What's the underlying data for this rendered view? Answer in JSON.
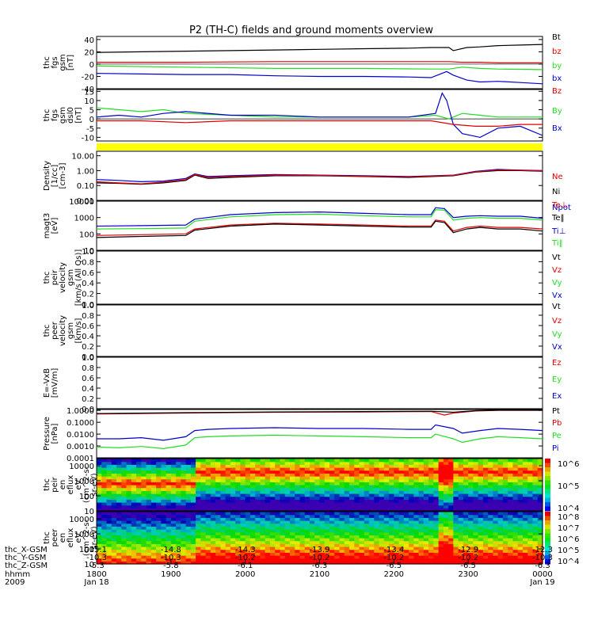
{
  "title": "P2 (TH-C) fields and ground moments overview",
  "colors": {
    "black": "#000000",
    "red": "#e00000",
    "green": "#22dd22",
    "blue": "#0000cc",
    "yellow": "#ffff00"
  },
  "chart_data": [
    {
      "type": "line",
      "panel": "fgs_gsm",
      "ylabel_lines": [
        "thc",
        "fgs",
        "gsm",
        "[nT]"
      ],
      "ylim": [
        -40,
        45
      ],
      "yticks": [
        40,
        20,
        0,
        -20,
        -40
      ],
      "log": false,
      "legend": [
        {
          "name": "Bt",
          "color": "#000000"
        },
        {
          "name": "bz",
          "color": "#e00000"
        },
        {
          "name": "by",
          "color": "#22dd22"
        },
        {
          "name": "bx",
          "color": "#0000cc"
        }
      ],
      "series": [
        {
          "name": "Bt",
          "color": "#000000",
          "x": [
            0,
            0.1,
            0.2,
            0.3,
            0.4,
            0.5,
            0.6,
            0.7,
            0.75,
            0.79,
            0.8,
            0.83,
            0.86,
            0.9,
            0.95,
            1.0
          ],
          "y": [
            19,
            20,
            21,
            22,
            23,
            24,
            25,
            26,
            27,
            27,
            22,
            27,
            28,
            30,
            31,
            32
          ]
        },
        {
          "name": "bz",
          "color": "#e00000",
          "x": [
            0,
            0.2,
            0.4,
            0.6,
            0.75,
            0.79,
            0.82,
            0.86,
            0.9,
            1.0
          ],
          "y": [
            3,
            3,
            4,
            4,
            4,
            4,
            3,
            3,
            2,
            2
          ]
        },
        {
          "name": "by",
          "color": "#22dd22",
          "x": [
            0,
            0.2,
            0.4,
            0.6,
            0.75,
            0.79,
            0.82,
            0.86,
            0.9,
            1.0
          ],
          "y": [
            -3,
            -5,
            -7,
            -7,
            -8,
            -8,
            -5,
            -7,
            -8,
            -9
          ]
        },
        {
          "name": "bx",
          "color": "#0000cc",
          "x": [
            0,
            0.1,
            0.2,
            0.3,
            0.4,
            0.5,
            0.6,
            0.7,
            0.75,
            0.785,
            0.8,
            0.83,
            0.86,
            0.9,
            0.95,
            1.0
          ],
          "y": [
            -15,
            -16,
            -17,
            -17,
            -19,
            -20,
            -20,
            -21,
            -22,
            -12,
            -18,
            -26,
            -29,
            -28,
            -30,
            -32
          ]
        }
      ]
    },
    {
      "type": "line",
      "panel": "fgs_gsm_dsl",
      "ylabel_lines": [
        "thc",
        "fgs",
        "gsm",
        "dsl0",
        "[nT]"
      ],
      "ylim": [
        -12,
        16
      ],
      "yticks": [
        15,
        10,
        5,
        0,
        -5,
        -10
      ],
      "log": false,
      "legend": [
        {
          "name": "Bz",
          "color": "#e00000"
        },
        {
          "name": "By",
          "color": "#22dd22"
        },
        {
          "name": "Bx",
          "color": "#0000cc"
        }
      ],
      "series": [
        {
          "name": "By",
          "color": "#22dd22",
          "x": [
            0,
            0.05,
            0.1,
            0.15,
            0.2,
            0.3,
            0.4,
            0.5,
            0.6,
            0.7,
            0.76,
            0.79,
            0.82,
            0.86,
            0.9,
            1.0
          ],
          "y": [
            6,
            5,
            4,
            5,
            3,
            2,
            1,
            1,
            1,
            1,
            2,
            0,
            3,
            2,
            1,
            1
          ]
        },
        {
          "name": "Bx",
          "color": "#0000cc",
          "x": [
            0,
            0.05,
            0.1,
            0.15,
            0.2,
            0.3,
            0.4,
            0.5,
            0.6,
            0.7,
            0.76,
            0.775,
            0.785,
            0.8,
            0.82,
            0.86,
            0.9,
            0.95,
            1.0
          ],
          "y": [
            1,
            2,
            1,
            3,
            4,
            2,
            2,
            1,
            1,
            1,
            3,
            14,
            10,
            -3,
            -8,
            -10,
            -5,
            -4,
            -9
          ]
        },
        {
          "name": "Bz",
          "color": "#e00000",
          "x": [
            0,
            0.1,
            0.2,
            0.3,
            0.4,
            0.5,
            0.6,
            0.7,
            0.75,
            0.8,
            0.85,
            0.9,
            0.95,
            1.0
          ],
          "y": [
            -1,
            -1,
            -2,
            -1,
            -1,
            -1,
            -1,
            -1,
            -1,
            -3,
            -4,
            -4,
            -3,
            -3
          ]
        }
      ]
    },
    {
      "type": "line",
      "panel": "density",
      "ylabel_lines": [
        "Density",
        "[1/cc]",
        "[cm-3]"
      ],
      "ylim": [
        0.01,
        20
      ],
      "yticks": [
        "10.00",
        "1.00",
        "0.10",
        "0.01"
      ],
      "log": true,
      "legend": [
        {
          "name": "Ne",
          "color": "#e00000"
        },
        {
          "name": "Ni",
          "color": "#000000"
        },
        {
          "name": "Npot",
          "color": "#0000cc"
        }
      ],
      "series": [
        {
          "name": "Npot",
          "color": "#0000cc",
          "x": [
            0,
            0.05,
            0.1,
            0.15,
            0.2,
            0.22,
            0.25,
            0.3,
            0.4,
            0.5,
            0.6,
            0.7,
            0.8,
            0.85,
            0.9,
            0.95,
            1.0
          ],
          "y": [
            0.25,
            0.22,
            0.18,
            0.2,
            0.3,
            0.6,
            0.4,
            0.45,
            0.55,
            0.5,
            0.45,
            0.4,
            0.5,
            0.9,
            1.2,
            1.1,
            1.0
          ]
        },
        {
          "name": "Ni",
          "color": "#000000",
          "x": [
            0,
            0.05,
            0.1,
            0.15,
            0.2,
            0.22,
            0.25,
            0.3,
            0.4,
            0.5,
            0.6,
            0.7,
            0.8,
            0.85,
            0.9,
            0.95,
            1.0
          ],
          "y": [
            0.15,
            0.14,
            0.12,
            0.15,
            0.22,
            0.5,
            0.3,
            0.35,
            0.45,
            0.45,
            0.4,
            0.35,
            0.45,
            0.8,
            1.0,
            1.0,
            0.9
          ]
        },
        {
          "name": "Ne",
          "color": "#e00000",
          "x": [
            0,
            0.05,
            0.1,
            0.15,
            0.2,
            0.22,
            0.25,
            0.3,
            0.4,
            0.5,
            0.6,
            0.7,
            0.8,
            0.85,
            0.9,
            0.95,
            1.0
          ],
          "y": [
            0.18,
            0.15,
            0.13,
            0.17,
            0.25,
            0.55,
            0.35,
            0.4,
            0.5,
            0.48,
            0.42,
            0.38,
            0.48,
            0.85,
            1.1,
            1.05,
            0.95
          ]
        }
      ]
    },
    {
      "type": "line",
      "panel": "temperature",
      "ylabel_lines": [
        "magt3",
        "[eV]"
      ],
      "ylim": [
        10,
        10000
      ],
      "yticks": [
        "10000",
        "1000",
        "100",
        "10"
      ],
      "log": true,
      "legend": [
        {
          "name": "Te⊥",
          "color": "#e00000"
        },
        {
          "name": "Te‖",
          "color": "#000000"
        },
        {
          "name": "Ti⊥",
          "color": "#0000cc"
        },
        {
          "name": "Ti‖",
          "color": "#22dd22"
        }
      ],
      "series": [
        {
          "name": "Ti⊥",
          "color": "#0000cc",
          "x": [
            0,
            0.1,
            0.2,
            0.22,
            0.3,
            0.4,
            0.5,
            0.6,
            0.7,
            0.75,
            0.76,
            0.78,
            0.8,
            0.83,
            0.86,
            0.9,
            0.95,
            1.0
          ],
          "y": [
            300,
            320,
            350,
            800,
            1500,
            2000,
            2200,
            1800,
            1500,
            1500,
            4000,
            3500,
            1000,
            1200,
            1300,
            1200,
            1200,
            900
          ]
        },
        {
          "name": "Ti‖",
          "color": "#22dd22",
          "x": [
            0,
            0.1,
            0.2,
            0.22,
            0.3,
            0.4,
            0.5,
            0.6,
            0.7,
            0.75,
            0.76,
            0.78,
            0.8,
            0.83,
            0.86,
            0.9,
            0.95,
            1.0
          ],
          "y": [
            200,
            210,
            230,
            600,
            1100,
            1500,
            1600,
            1300,
            1100,
            1100,
            3000,
            2800,
            700,
            900,
            1000,
            900,
            900,
            700
          ]
        },
        {
          "name": "Te⊥",
          "color": "#e00000",
          "x": [
            0,
            0.1,
            0.2,
            0.22,
            0.3,
            0.4,
            0.5,
            0.6,
            0.7,
            0.75,
            0.76,
            0.78,
            0.8,
            0.83,
            0.86,
            0.9,
            0.95,
            1.0
          ],
          "y": [
            80,
            90,
            100,
            200,
            350,
            450,
            400,
            350,
            300,
            300,
            700,
            600,
            150,
            250,
            300,
            250,
            250,
            200
          ]
        },
        {
          "name": "Te‖",
          "color": "#000000",
          "x": [
            0,
            0.1,
            0.2,
            0.22,
            0.3,
            0.4,
            0.5,
            0.6,
            0.7,
            0.75,
            0.76,
            0.78,
            0.8,
            0.83,
            0.86,
            0.9,
            0.95,
            1.0
          ],
          "y": [
            60,
            70,
            80,
            170,
            300,
            400,
            350,
            300,
            260,
            260,
            600,
            500,
            120,
            200,
            250,
            200,
            200,
            150
          ]
        }
      ]
    },
    {
      "type": "line",
      "panel": "peir_velocity",
      "ylabel_lines": [
        "thc",
        "peir",
        "velocity",
        "gsm",
        "[km/s (All Qs)]"
      ],
      "ylim": [
        0,
        1
      ],
      "yticks": [
        "1.0",
        "0.8",
        "0.6",
        "0.4",
        "0.2",
        "0.0"
      ],
      "log": false,
      "legend": [
        {
          "name": "Vt",
          "color": "#000000"
        },
        {
          "name": "Vz",
          "color": "#e00000"
        },
        {
          "name": "Vy",
          "color": "#22dd22"
        },
        {
          "name": "Vx",
          "color": "#0000cc"
        }
      ],
      "series": []
    },
    {
      "type": "line",
      "panel": "peer_velocity",
      "ylabel_lines": [
        "thc",
        "peer",
        "velocity",
        "gsm",
        "[km/s]"
      ],
      "ylim": [
        0,
        1
      ],
      "yticks": [
        "1.0",
        "0.8",
        "0.6",
        "0.4",
        "0.2",
        "0.0"
      ],
      "log": false,
      "legend": [
        {
          "name": "Vt",
          "color": "#000000"
        },
        {
          "name": "Vz",
          "color": "#e00000"
        },
        {
          "name": "Vy",
          "color": "#22dd22"
        },
        {
          "name": "Vx",
          "color": "#0000cc"
        }
      ],
      "series": []
    },
    {
      "type": "line",
      "panel": "efield",
      "ylabel_lines": [
        "E=-VxB",
        "[mV/m]"
      ],
      "ylim": [
        0,
        1
      ],
      "yticks": [
        "1.0",
        "0.8",
        "0.6",
        "0.4",
        "0.2",
        "0.0"
      ],
      "log": false,
      "legend": [
        {
          "name": "Ez",
          "color": "#e00000"
        },
        {
          "name": "Ey",
          "color": "#22dd22"
        },
        {
          "name": "Ex",
          "color": "#0000cc"
        }
      ],
      "series": []
    },
    {
      "type": "line",
      "panel": "pressure",
      "ylabel_lines": [
        "Pressure",
        "[nPa]"
      ],
      "ylim": [
        0.0001,
        1.2
      ],
      "yticks": [
        "1.0000",
        "0.1000",
        "0.0100",
        "0.0010",
        "0.0001"
      ],
      "log": true,
      "legend": [
        {
          "name": "Pt",
          "color": "#000000"
        },
        {
          "name": "Pb",
          "color": "#e00000"
        },
        {
          "name": "Pe",
          "color": "#22dd22"
        },
        {
          "name": "Pi",
          "color": "#0000cc"
        }
      ],
      "series": [
        {
          "name": "Pb",
          "color": "#e00000",
          "x": [
            0,
            0.2,
            0.4,
            0.6,
            0.75,
            0.78,
            0.8,
            0.85,
            0.9,
            1.0
          ],
          "y": [
            0.5,
            0.6,
            0.7,
            0.75,
            0.8,
            0.4,
            0.6,
            0.9,
            1.0,
            1.0
          ]
        },
        {
          "name": "Pt",
          "color": "#000000",
          "x": [
            0,
            0.2,
            0.4,
            0.6,
            0.75,
            0.8,
            0.85,
            0.9,
            1.0
          ],
          "y": [
            0.55,
            0.65,
            0.75,
            0.8,
            0.85,
            0.7,
            0.95,
            1.05,
            1.05
          ]
        },
        {
          "name": "Pi",
          "color": "#0000cc",
          "x": [
            0,
            0.05,
            0.1,
            0.15,
            0.2,
            0.22,
            0.25,
            0.3,
            0.4,
            0.5,
            0.6,
            0.7,
            0.75,
            0.76,
            0.8,
            0.82,
            0.86,
            0.9,
            0.95,
            1.0
          ],
          "y": [
            0.004,
            0.004,
            0.005,
            0.003,
            0.006,
            0.02,
            0.025,
            0.03,
            0.035,
            0.03,
            0.03,
            0.025,
            0.025,
            0.06,
            0.03,
            0.012,
            0.02,
            0.03,
            0.025,
            0.02
          ]
        },
        {
          "name": "Pe",
          "color": "#22dd22",
          "x": [
            0,
            0.05,
            0.1,
            0.15,
            0.2,
            0.22,
            0.25,
            0.3,
            0.4,
            0.5,
            0.6,
            0.7,
            0.75,
            0.76,
            0.8,
            0.82,
            0.86,
            0.9,
            0.95,
            1.0
          ],
          "y": [
            0.0008,
            0.0007,
            0.0009,
            0.0006,
            0.0012,
            0.005,
            0.006,
            0.007,
            0.008,
            0.007,
            0.006,
            0.005,
            0.005,
            0.01,
            0.004,
            0.002,
            0.004,
            0.006,
            0.005,
            0.004
          ]
        }
      ]
    },
    {
      "type": "heatmap",
      "panel": "peir_eflux",
      "ylabel_lines": [
        "thc",
        "peir",
        "en",
        "eflux",
        "eV",
        "(cm^2-s-",
        "sr-eV)"
      ],
      "ylim": [
        10,
        30000
      ],
      "yticks": [
        "10000",
        "1000",
        "100",
        "10"
      ],
      "log": true,
      "colorbar": {
        "ticks": [
          "10^6",
          "10^5",
          "10^4"
        ]
      }
    },
    {
      "type": "heatmap",
      "panel": "peer_eflux",
      "ylabel_lines": [
        "thc",
        "peer",
        "en",
        "eflux",
        "eV",
        "(cm^2-s-",
        "sr-eV)"
      ],
      "ylim": [
        10,
        30000
      ],
      "yticks": [
        "10000",
        "1000",
        "100",
        "10"
      ],
      "log": true,
      "colorbar": {
        "ticks": [
          "10^8",
          "10^7",
          "10^6",
          "10^5",
          "10^4"
        ]
      }
    }
  ],
  "x_axis": {
    "row_labels": [
      "thc_X-GSM",
      "thc_Y-GSM",
      "thc_Z-GSM",
      "hhmm",
      "2009"
    ],
    "ticks": [
      {
        "x": -15.1,
        "y": -10.3,
        "z": -5.3,
        "hhmm": "1800",
        "date": "Jan 18"
      },
      {
        "x": -14.8,
        "y": -10.3,
        "z": -5.8,
        "hhmm": "1900",
        "date": ""
      },
      {
        "x": -14.3,
        "y": -10.2,
        "z": -6.1,
        "hhmm": "2000",
        "date": ""
      },
      {
        "x": -13.9,
        "y": -10.2,
        "z": -6.3,
        "hhmm": "2100",
        "date": ""
      },
      {
        "x": -13.4,
        "y": -10.2,
        "z": -6.5,
        "hhmm": "2200",
        "date": ""
      },
      {
        "x": -12.9,
        "y": -10.2,
        "z": -6.5,
        "hhmm": "2300",
        "date": ""
      },
      {
        "x": -12.3,
        "y": -10.3,
        "z": -6.3,
        "hhmm": "0000",
        "date": "Jan 19"
      }
    ]
  }
}
